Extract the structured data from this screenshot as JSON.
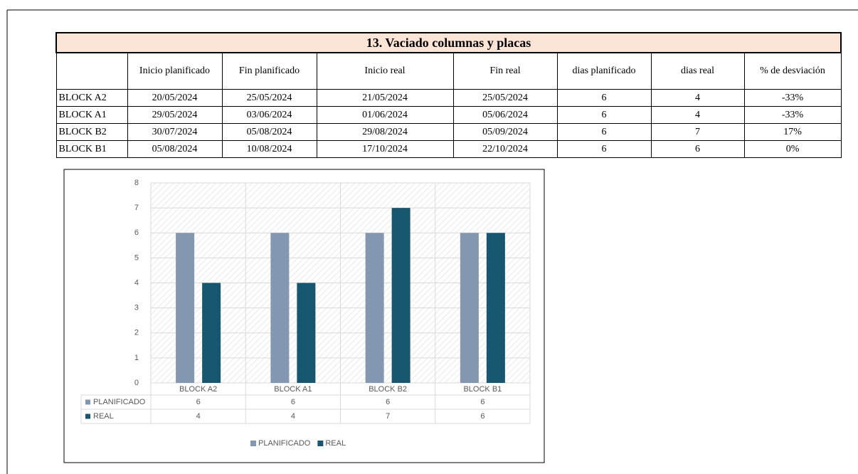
{
  "table": {
    "title": "13. Vaciado columnas y placas",
    "headers": [
      "Inicio planificado",
      "Fin planificado",
      "Inicio real",
      "Fin real",
      "dias planificado",
      "dias real",
      "% de desviación"
    ],
    "rows": [
      [
        "BLOCK A2",
        "20/05/2024",
        "25/05/2024",
        "21/05/2024",
        "25/05/2024",
        "6",
        "4",
        "-33%"
      ],
      [
        "BLOCK A1",
        "29/05/2024",
        "03/06/2024",
        "01/06/2024",
        "05/06/2024",
        "6",
        "4",
        "-33%"
      ],
      [
        "BLOCK B2",
        "30/07/2024",
        "05/08/2024",
        "29/08/2024",
        "05/09/2024",
        "6",
        "7",
        "17%"
      ],
      [
        "BLOCK B1",
        "05/08/2024",
        "10/08/2024",
        "17/10/2024",
        "22/10/2024",
        "6",
        "6",
        "0%"
      ]
    ]
  },
  "chart_data": {
    "type": "bar",
    "categories": [
      "BLOCK A2",
      "BLOCK A1",
      "BLOCK B2",
      "BLOCK B1"
    ],
    "series": [
      {
        "name": "PLANIFICADO",
        "color": "#8497b0",
        "values": [
          6,
          6,
          6,
          6
        ]
      },
      {
        "name": "REAL",
        "color": "#16566f",
        "values": [
          4,
          4,
          7,
          6
        ]
      }
    ],
    "ylim": [
      0,
      8
    ],
    "yticks": [
      0,
      1,
      2,
      3,
      4,
      5,
      6,
      7,
      8
    ],
    "grid": true,
    "data_table": true,
    "legend": "bottom"
  }
}
